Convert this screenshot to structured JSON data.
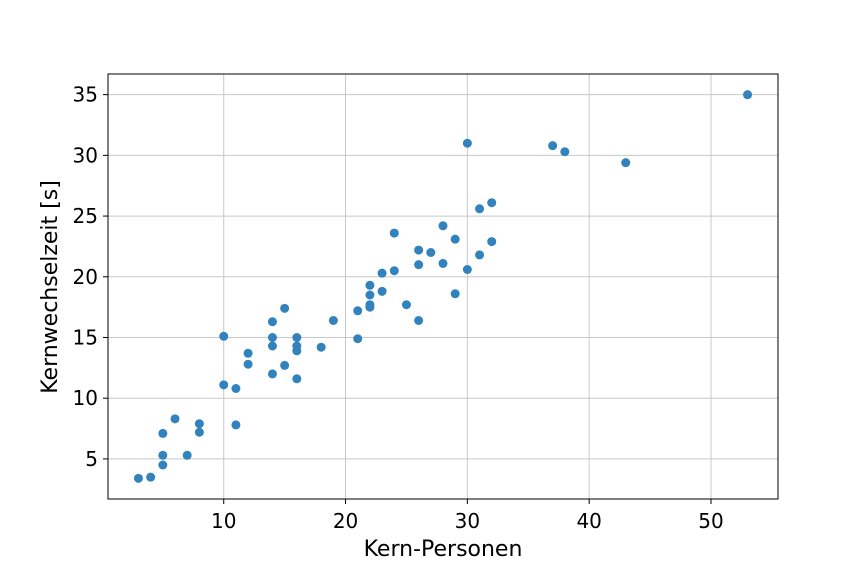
{
  "chart_data": {
    "type": "scatter",
    "title": "",
    "xlabel": "Kern-Personen",
    "ylabel": "Kernwechselzeit [s]",
    "xlim": [
      0.5,
      55.5
    ],
    "ylim": [
      1.7,
      36.7
    ],
    "xticks": [
      10,
      20,
      30,
      40,
      50
    ],
    "yticks": [
      5,
      10,
      15,
      20,
      25,
      30,
      35
    ],
    "grid": true,
    "legend": "none",
    "point_color": "#3182bd",
    "points": [
      {
        "x": 3,
        "y": 3.4
      },
      {
        "x": 4,
        "y": 3.5
      },
      {
        "x": 5,
        "y": 4.5
      },
      {
        "x": 5,
        "y": 5.3
      },
      {
        "x": 5,
        "y": 7.1
      },
      {
        "x": 6,
        "y": 8.3
      },
      {
        "x": 7,
        "y": 5.3
      },
      {
        "x": 8,
        "y": 7.2
      },
      {
        "x": 8,
        "y": 7.9
      },
      {
        "x": 10,
        "y": 11.1
      },
      {
        "x": 10,
        "y": 15.1
      },
      {
        "x": 11,
        "y": 7.8
      },
      {
        "x": 11,
        "y": 10.8
      },
      {
        "x": 12,
        "y": 12.8
      },
      {
        "x": 12,
        "y": 13.7
      },
      {
        "x": 14,
        "y": 12.0
      },
      {
        "x": 14,
        "y": 14.3
      },
      {
        "x": 14,
        "y": 15.0
      },
      {
        "x": 14,
        "y": 16.3
      },
      {
        "x": 15,
        "y": 12.7
      },
      {
        "x": 15,
        "y": 17.4
      },
      {
        "x": 16,
        "y": 11.6
      },
      {
        "x": 16,
        "y": 13.9
      },
      {
        "x": 16,
        "y": 14.3
      },
      {
        "x": 16,
        "y": 15.0
      },
      {
        "x": 18,
        "y": 14.2
      },
      {
        "x": 19,
        "y": 16.4
      },
      {
        "x": 21,
        "y": 14.9
      },
      {
        "x": 21,
        "y": 17.2
      },
      {
        "x": 22,
        "y": 17.5
      },
      {
        "x": 22,
        "y": 17.7
      },
      {
        "x": 22,
        "y": 18.5
      },
      {
        "x": 22,
        "y": 19.3
      },
      {
        "x": 23,
        "y": 18.8
      },
      {
        "x": 23,
        "y": 20.3
      },
      {
        "x": 24,
        "y": 20.5
      },
      {
        "x": 24,
        "y": 23.6
      },
      {
        "x": 25,
        "y": 17.7
      },
      {
        "x": 26,
        "y": 16.4
      },
      {
        "x": 26,
        "y": 21.0
      },
      {
        "x": 26,
        "y": 22.2
      },
      {
        "x": 27,
        "y": 22.0
      },
      {
        "x": 28,
        "y": 21.1
      },
      {
        "x": 28,
        "y": 24.2
      },
      {
        "x": 29,
        "y": 18.6
      },
      {
        "x": 29,
        "y": 23.1
      },
      {
        "x": 30,
        "y": 20.6
      },
      {
        "x": 30,
        "y": 31.0
      },
      {
        "x": 31,
        "y": 21.8
      },
      {
        "x": 31,
        "y": 25.6
      },
      {
        "x": 32,
        "y": 22.9
      },
      {
        "x": 32,
        "y": 26.1
      },
      {
        "x": 37,
        "y": 30.8
      },
      {
        "x": 38,
        "y": 30.3
      },
      {
        "x": 43,
        "y": 29.4
      },
      {
        "x": 53,
        "y": 35.0
      }
    ]
  }
}
